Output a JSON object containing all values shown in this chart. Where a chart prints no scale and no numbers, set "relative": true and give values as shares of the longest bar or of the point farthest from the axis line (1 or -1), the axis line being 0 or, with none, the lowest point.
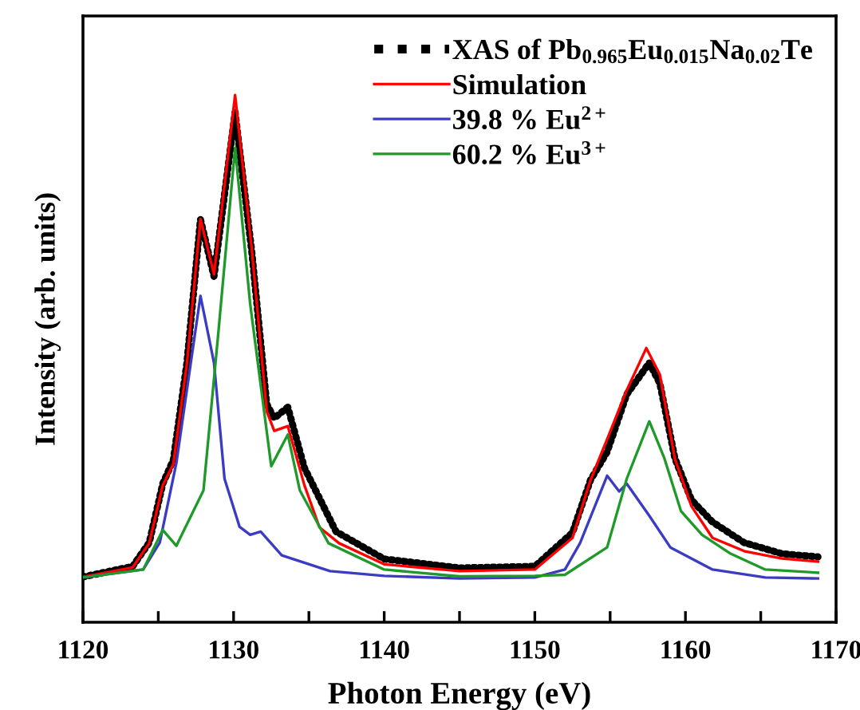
{
  "chart_data": {
    "type": "line",
    "relative": true,
    "xlabel": "Photon Energy (eV)",
    "ylabel": "Intensity (arb. units)",
    "xlim": [
      1120,
      1170
    ],
    "xticks": [
      1120,
      {
        "value": 1125,
        "label": null
      },
      1130,
      {
        "value": 1135,
        "label": null
      },
      1140,
      {
        "value": 1145,
        "label": null
      },
      1150,
      {
        "value": 1155,
        "label": null
      },
      1160,
      {
        "value": 1165,
        "label": null
      },
      1170
    ],
    "tick_labels": "x",
    "grid": false,
    "legend": "top right",
    "series": [
      {
        "name": "XAS of Pb$_{0.965}$Eu$_{0.015}$Na$_{0.02}$Te",
        "color": "#000000",
        "line_style": "dotted",
        "x": [
          1120,
          1123.3,
          1124.4,
          1125.3,
          1126.0,
          1126.9,
          1127.8,
          1128.7,
          1130.1,
          1131.2,
          1132.2,
          1132.7,
          1133.6,
          1134.7,
          1136.8,
          1140,
          1145,
          1150,
          1152.5,
          1153.7,
          1154.8,
          1156.1,
          1157.6,
          1158.3,
          1159.3,
          1160.4,
          1161.8,
          1163.9,
          1166.4,
          1168.8
        ],
        "values": [
          0.086,
          0.106,
          0.151,
          0.263,
          0.308,
          0.492,
          0.764,
          0.656,
          0.967,
          0.705,
          0.414,
          0.387,
          0.408,
          0.293,
          0.172,
          0.12,
          0.103,
          0.106,
          0.17,
          0.27,
          0.323,
          0.432,
          0.492,
          0.453,
          0.311,
          0.232,
          0.19,
          0.151,
          0.13,
          0.124
        ]
      },
      {
        "name": "Simulation",
        "color": "#ff0000",
        "x": [
          1120,
          1123.3,
          1124.4,
          1125.3,
          1126.0,
          1126.9,
          1127.8,
          1128.7,
          1130.1,
          1131.2,
          1132.2,
          1132.7,
          1133.6,
          1134.7,
          1135.7,
          1137,
          1140,
          1145,
          1150,
          1152.5,
          1153.7,
          1154.8,
          1156.1,
          1157.4,
          1158.3,
          1159.3,
          1160.4,
          1161.8,
          1163.9,
          1166.4,
          1168.8
        ],
        "values": [
          0.086,
          0.104,
          0.15,
          0.26,
          0.3,
          0.49,
          0.765,
          0.66,
          1.0,
          0.71,
          0.4,
          0.363,
          0.372,
          0.26,
          0.18,
          0.15,
          0.11,
          0.097,
          0.1,
          0.16,
          0.27,
          0.347,
          0.44,
          0.52,
          0.47,
          0.31,
          0.22,
          0.16,
          0.135,
          0.121,
          0.115
        ]
      },
      {
        "name": "39.8 % Eu$^{2+}$",
        "color": "#3b3bc4",
        "x": [
          1120,
          1124,
          1125.1,
          1126.2,
          1127.8,
          1128.7,
          1129.4,
          1130.4,
          1131.1,
          1131.8,
          1133.2,
          1136.4,
          1140,
          1145,
          1150,
          1152,
          1153,
          1154.8,
          1155.6,
          1156.1,
          1157.6,
          1159.0,
          1161.8,
          1165.3,
          1168.8
        ],
        "values": [
          0.085,
          0.1,
          0.151,
          0.302,
          0.619,
          0.492,
          0.272,
          0.181,
          0.166,
          0.172,
          0.127,
          0.097,
          0.088,
          0.083,
          0.085,
          0.1,
          0.15,
          0.278,
          0.248,
          0.263,
          0.202,
          0.142,
          0.1,
          0.085,
          0.083
        ]
      },
      {
        "name": "60.2 % Eu$^{3+}$",
        "color": "#1f9a2a",
        "x": [
          1120,
          1124,
          1125.3,
          1126.2,
          1128.0,
          1129.0,
          1130.1,
          1131.1,
          1132.5,
          1133.6,
          1134.4,
          1136.3,
          1140,
          1145,
          1150,
          1152,
          1154.8,
          1156.1,
          1157.6,
          1158.6,
          1159.7,
          1161.1,
          1163.0,
          1165.3,
          1168.8
        ],
        "values": [
          0.085,
          0.1,
          0.175,
          0.145,
          0.25,
          0.553,
          0.9,
          0.604,
          0.296,
          0.356,
          0.25,
          0.15,
          0.1,
          0.087,
          0.088,
          0.09,
          0.142,
          0.272,
          0.381,
          0.311,
          0.211,
          0.166,
          0.13,
          0.1,
          0.094
        ]
      }
    ]
  }
}
